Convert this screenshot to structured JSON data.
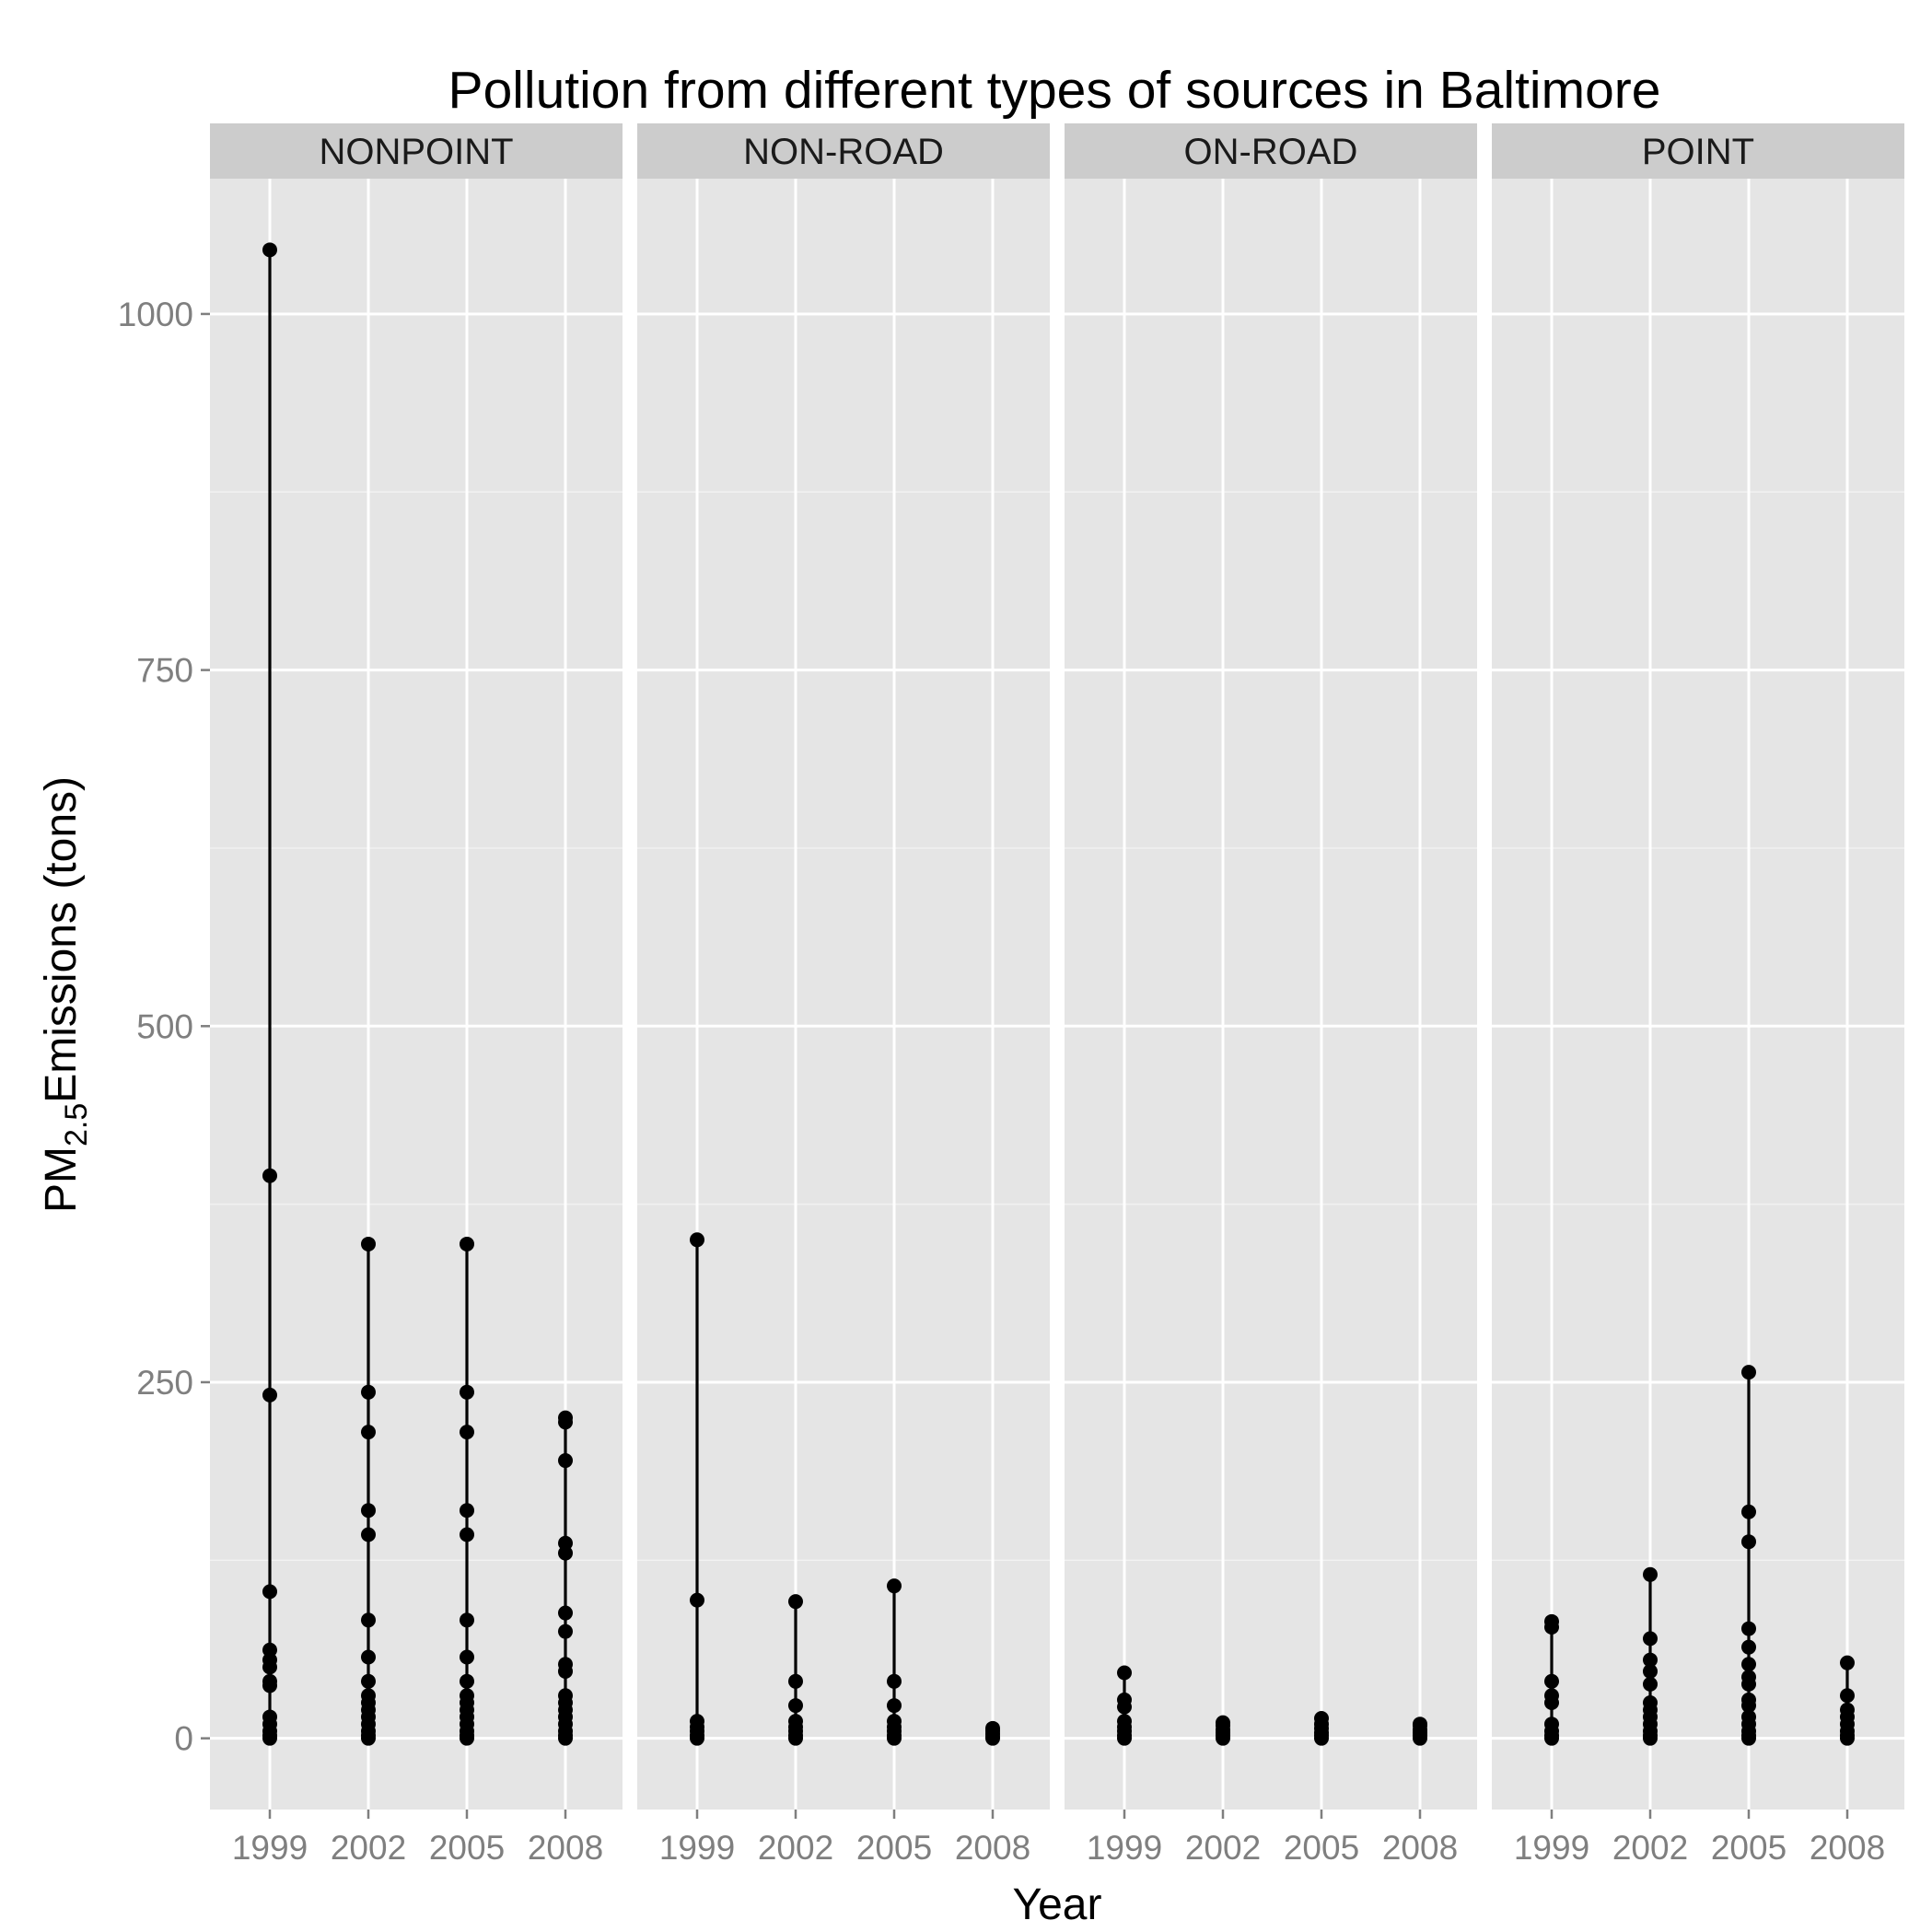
{
  "chart_data": {
    "type": "scatter",
    "title": "Pollution from different types of sources in Baltimore",
    "xlabel": "Year",
    "ylabel_main": "PM",
    "ylabel_sub": "2.5",
    "ylabel_rest": "Emissions (tons)",
    "ylim": [
      -50,
      1095
    ],
    "yticks": [
      0,
      250,
      500,
      750,
      1000
    ],
    "x_categories": [
      "1999",
      "2002",
      "2005",
      "2008"
    ],
    "grid": true,
    "colors": {
      "panel_bg": "#e5e5e5",
      "grid_major": "#ffffff",
      "strip_bg": "#cccccc",
      "points": "#000000"
    },
    "panels": [
      {
        "name": "NONPOINT",
        "years": [
          {
            "year": "1999",
            "values": [
              0,
              2,
              5,
              10,
              15,
              37,
              40,
              50,
              55,
              62,
              103,
              241,
              395,
              1045
            ]
          },
          {
            "year": "2002",
            "values": [
              0,
              2,
              5,
              10,
              15,
              20,
              25,
              30,
              40,
              57,
              83,
              143,
              160,
              215,
              243,
              347
            ]
          },
          {
            "year": "2005",
            "values": [
              0,
              2,
              5,
              10,
              15,
              20,
              25,
              30,
              40,
              57,
              83,
              143,
              160,
              215,
              243,
              347
            ]
          },
          {
            "year": "2008",
            "values": [
              0,
              2,
              5,
              10,
              15,
              20,
              25,
              30,
              47,
              52,
              75,
              88,
              130,
              137,
              195,
              222,
              225
            ]
          }
        ]
      },
      {
        "name": "NON-ROAD",
        "years": [
          {
            "year": "1999",
            "values": [
              0,
              2,
              5,
              8,
              12,
              97,
              350
            ]
          },
          {
            "year": "2002",
            "values": [
              0,
              2,
              5,
              8,
              12,
              23,
              40,
              96
            ]
          },
          {
            "year": "2005",
            "values": [
              0,
              2,
              5,
              8,
              12,
              23,
              40,
              107
            ]
          },
          {
            "year": "2008",
            "values": [
              0,
              1,
              3,
              5,
              7
            ]
          }
        ]
      },
      {
        "name": "ON-ROAD",
        "years": [
          {
            "year": "1999",
            "values": [
              0,
              2,
              5,
              8,
              12,
              22,
              27,
              46
            ]
          },
          {
            "year": "2002",
            "values": [
              0,
              2,
              4,
              6,
              9,
              11
            ]
          },
          {
            "year": "2005",
            "values": [
              0,
              2,
              4,
              7,
              10,
              14
            ]
          },
          {
            "year": "2008",
            "values": [
              0,
              2,
              4,
              6,
              9,
              10
            ]
          }
        ]
      },
      {
        "name": "POINT",
        "years": [
          {
            "year": "1999",
            "values": [
              0,
              2,
              5,
              10,
              25,
              30,
              40,
              78,
              82
            ]
          },
          {
            "year": "2002",
            "values": [
              0,
              2,
              5,
              10,
              15,
              20,
              25,
              38,
              47,
              55,
              70,
              115
            ]
          },
          {
            "year": "2005",
            "values": [
              0,
              2,
              5,
              10,
              15,
              23,
              27,
              38,
              43,
              52,
              64,
              77,
              138,
              159,
              257
            ]
          },
          {
            "year": "2008",
            "values": [
              0,
              2,
              5,
              10,
              15,
              20,
              30,
              53
            ]
          }
        ]
      }
    ]
  }
}
